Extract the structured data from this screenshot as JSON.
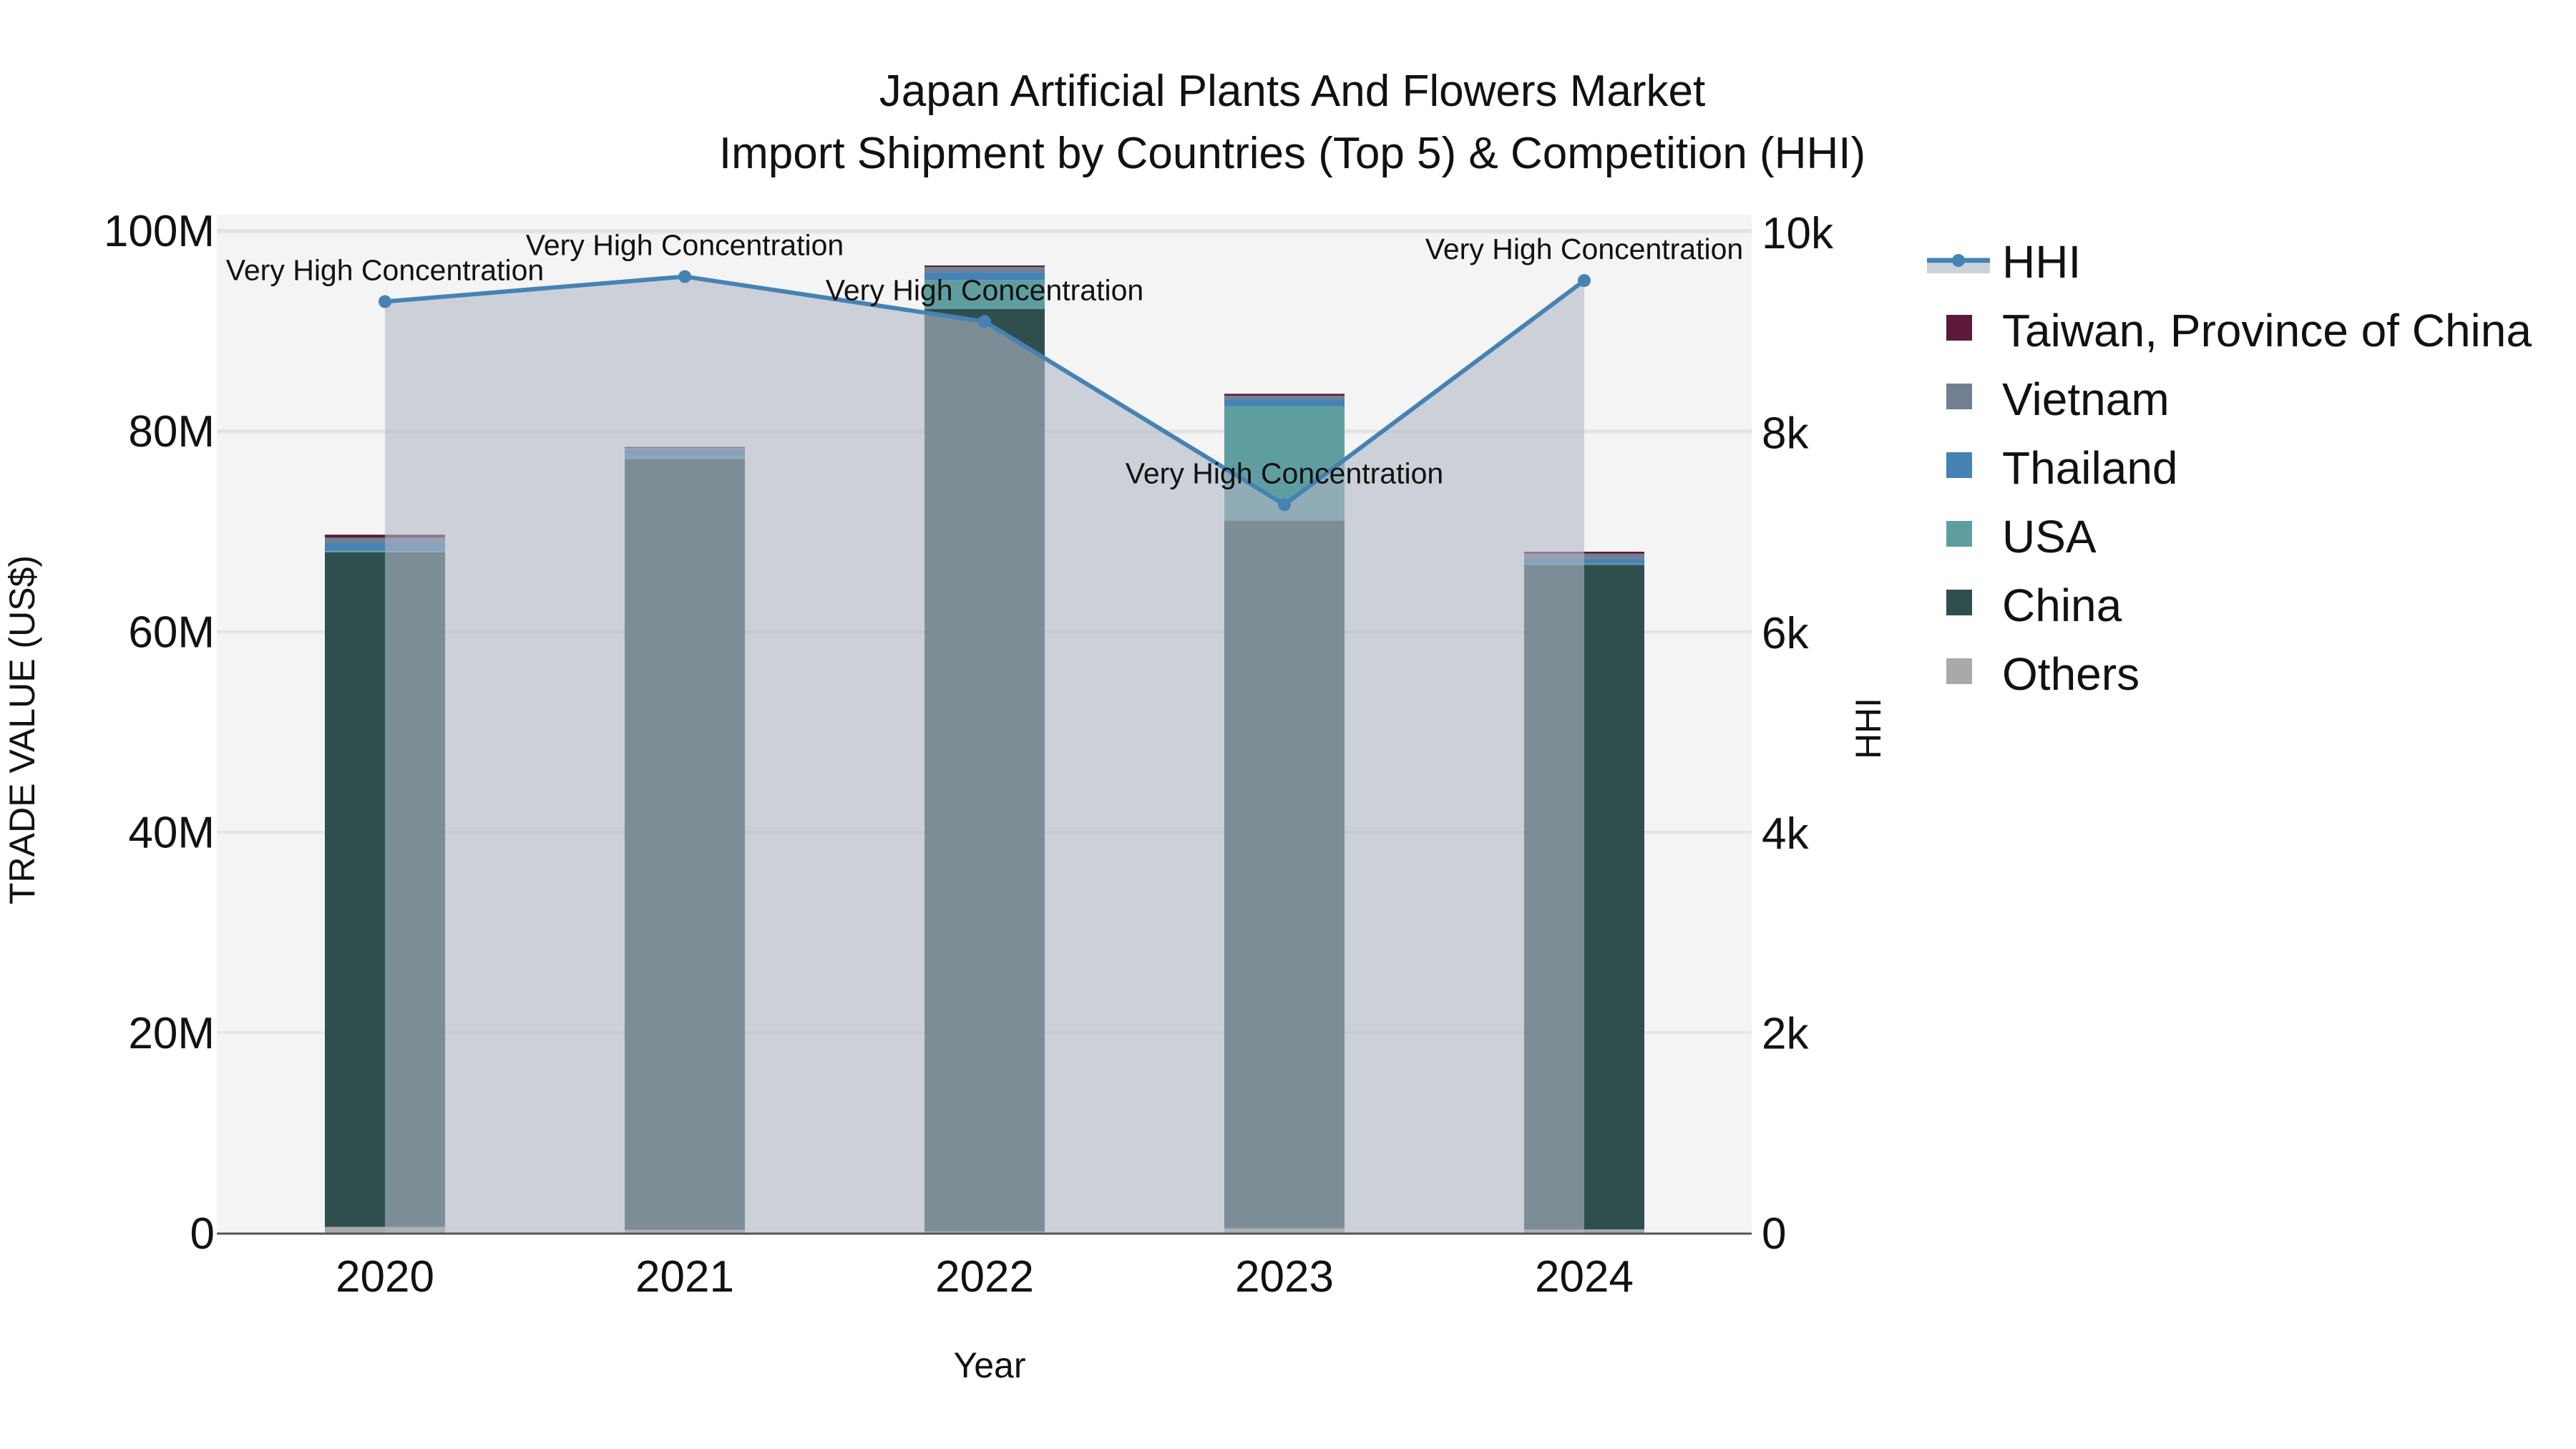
{
  "title": {
    "line1": "Japan Artificial Plants And Flowers Market",
    "line2": "Import Shipment by Countries (Top 5) & Competition (HHI)"
  },
  "axes": {
    "x_title": "Year",
    "y_left_title": "TRADE VALUE (US$)",
    "y_right_title": "HHI",
    "y_left_ticks": [
      "0",
      "20M",
      "40M",
      "60M",
      "80M",
      "100M"
    ],
    "y_right_ticks": [
      "0",
      "2k",
      "4k",
      "6k",
      "8k",
      "10k"
    ]
  },
  "legend": [
    {
      "label": "HHI",
      "type": "line",
      "color": "#4682b4"
    },
    {
      "label": "Taiwan, Province of China",
      "type": "box",
      "color": "#5c1a3a"
    },
    {
      "label": "Vietnam",
      "type": "box",
      "color": "#708090"
    },
    {
      "label": "Thailand",
      "type": "box",
      "color": "#4682b4"
    },
    {
      "label": "USA",
      "type": "box",
      "color": "#5f9ea0"
    },
    {
      "label": "China",
      "type": "box",
      "color": "#2f4f4f"
    },
    {
      "label": "Others",
      "type": "box",
      "color": "#a9a9a9"
    }
  ],
  "colors": {
    "plot_bg": "#f4f4f4",
    "hhi_line": "#4682b4",
    "hhi_fill": "rgba(176,184,198,0.6)",
    "grid": "#e2e2e2"
  },
  "chart_data": {
    "type": "bar",
    "title": "Japan Artificial Plants And Flowers Market — Import Shipment by Countries (Top 5) & Competition (HHI)",
    "xlabel": "Year",
    "ylabel": "TRADE VALUE (US$)",
    "y2label": "HHI",
    "ylim": [
      0,
      100000000
    ],
    "y2lim": [
      0,
      10000
    ],
    "stacked": true,
    "grid": true,
    "legend_position": "right",
    "categories": [
      "2020",
      "2021",
      "2022",
      "2023",
      "2024"
    ],
    "series": [
      {
        "name": "Others",
        "color": "#a9a9a9",
        "values": [
          600000,
          300000,
          150000,
          450000,
          350000
        ]
      },
      {
        "name": "China",
        "color": "#2f4f4f",
        "values": [
          67300000,
          76900000,
          92000000,
          70600000,
          66300000
        ]
      },
      {
        "name": "USA",
        "color": "#5f9ea0",
        "values": [
          150000,
          200000,
          2900000,
          11400000,
          100000
        ]
      },
      {
        "name": "Thailand",
        "color": "#4682b4",
        "values": [
          800000,
          700000,
          800000,
          700000,
          500000
        ]
      },
      {
        "name": "Vietnam",
        "color": "#708090",
        "values": [
          500000,
          200000,
          500000,
          350000,
          500000
        ]
      },
      {
        "name": "Taiwan, Province of China",
        "color": "#5c1a3a",
        "values": [
          300000,
          100000,
          150000,
          200000,
          200000
        ]
      }
    ],
    "line_series": {
      "name": "HHI",
      "axis": "right",
      "color": "#4682b4",
      "fill": "tozeroy",
      "values": [
        9310,
        9560,
        9110,
        7280,
        9520
      ],
      "annotations": [
        "Very High Concentration",
        "Very High Concentration",
        "Very High Concentration",
        "Very High Concentration",
        "Very High Concentration"
      ]
    }
  }
}
